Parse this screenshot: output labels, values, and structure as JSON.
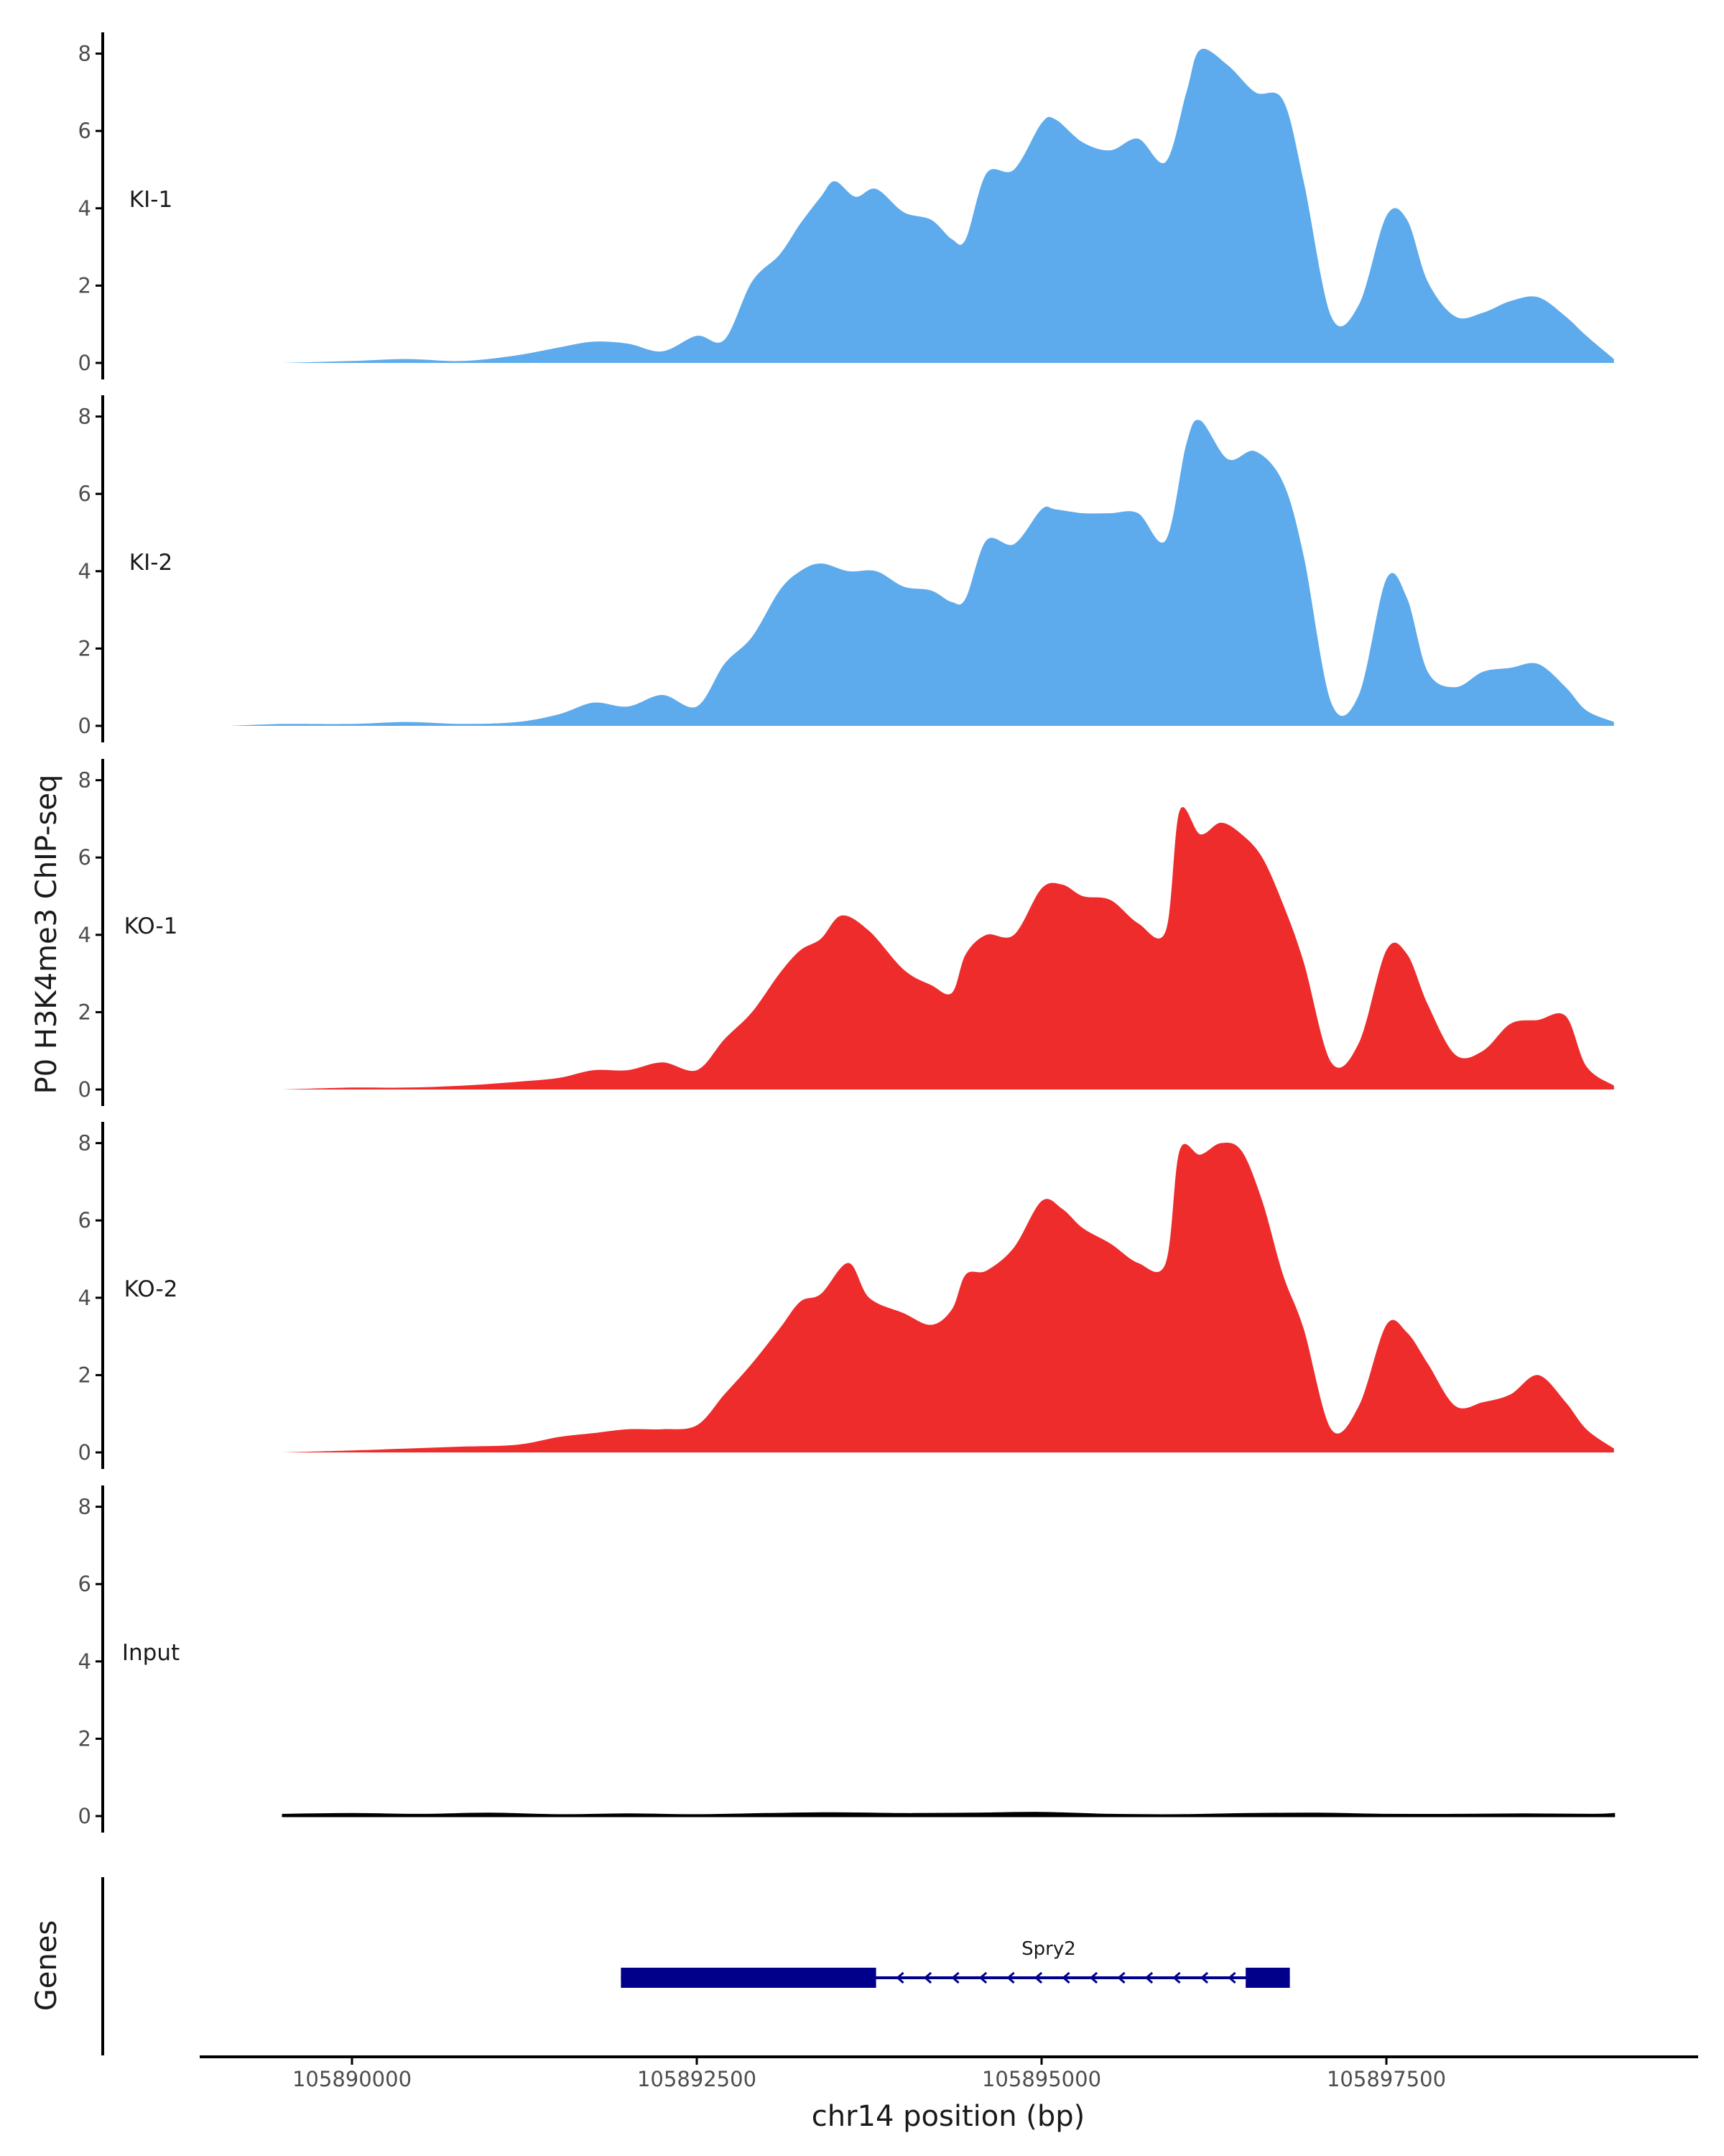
{
  "chart_data": {
    "type": "area",
    "ylabel": "P0 H3K4me3 ChIP-seq",
    "xlabel": "chr14 position (bp)",
    "x_ticks": [
      105890000,
      105892500,
      105895000,
      105897500
    ],
    "x_tick_labels": [
      "105890000",
      "105892500",
      "105895000",
      "105897500"
    ],
    "xlim": [
      105888900,
      105899700
    ],
    "y_ticks": [
      0,
      2,
      4,
      6,
      8
    ],
    "y_tick_labels": [
      "0",
      "2",
      "4",
      "6",
      "8"
    ],
    "ylim": [
      0,
      8.5
    ],
    "tracks": [
      {
        "name": "KI-1",
        "color": "#5DABEC",
        "x": [
          105889500,
          105890000,
          105890400,
          105890800,
          105891200,
          105891500,
          105891750,
          105892000,
          105892250,
          105892500,
          105892700,
          105892900,
          105893100,
          105893250,
          105893400,
          105893500,
          105893650,
          105893800,
          105894000,
          105894200,
          105894350,
          105894450,
          105894600,
          105894800,
          105895000,
          105895100,
          105895300,
          105895500,
          105895700,
          105895900,
          105896050,
          105896150,
          105896350,
          105896550,
          105896750,
          105896900,
          105897100,
          105897300,
          105897500,
          105897650,
          105897800,
          105898000,
          105898200,
          105898400,
          105898600,
          105898800,
          105898950,
          105899150
        ],
        "y": [
          0,
          0.05,
          0.1,
          0.05,
          0.2,
          0.4,
          0.55,
          0.5,
          0.3,
          0.7,
          0.6,
          2.1,
          2.8,
          3.6,
          4.3,
          4.7,
          4.3,
          4.5,
          3.9,
          3.7,
          3.2,
          3.2,
          4.9,
          5.0,
          6.2,
          6.3,
          5.7,
          5.5,
          5.8,
          5.2,
          7.0,
          8.1,
          7.7,
          7.0,
          6.8,
          4.7,
          1.2,
          1.5,
          3.8,
          3.7,
          2.1,
          1.2,
          1.3,
          1.6,
          1.7,
          1.2,
          0.7,
          0.1
        ]
      },
      {
        "name": "KI-2",
        "color": "#5DABEC",
        "x": [
          105889100,
          105889500,
          105890000,
          105890400,
          105890800,
          105891200,
          105891500,
          105891750,
          105892000,
          105892250,
          105892500,
          105892700,
          105892900,
          105893100,
          105893250,
          105893400,
          105893600,
          105893800,
          105894000,
          105894200,
          105894350,
          105894450,
          105894600,
          105894800,
          105895000,
          105895100,
          105895300,
          105895500,
          105895700,
          105895900,
          105896050,
          105896150,
          105896350,
          105896550,
          105896750,
          105896900,
          105897100,
          105897300,
          105897500,
          105897650,
          105897800,
          105898000,
          105898200,
          105898400,
          105898600,
          105898800,
          105898950,
          105899150
        ],
        "y": [
          0,
          0.05,
          0.05,
          0.1,
          0.05,
          0.1,
          0.3,
          0.6,
          0.5,
          0.8,
          0.5,
          1.6,
          2.3,
          3.5,
          4.0,
          4.2,
          4.0,
          4.0,
          3.6,
          3.5,
          3.2,
          3.3,
          4.8,
          4.7,
          5.6,
          5.6,
          5.5,
          5.5,
          5.5,
          4.8,
          7.3,
          7.9,
          6.9,
          7.1,
          6.3,
          4.4,
          0.6,
          0.8,
          3.8,
          3.3,
          1.4,
          1.0,
          1.4,
          1.5,
          1.6,
          1.0,
          0.4,
          0.1
        ]
      },
      {
        "name": "KO-1",
        "color": "#EE2C2C",
        "x": [
          105889500,
          105890000,
          105890400,
          105890800,
          105891200,
          105891500,
          105891750,
          105892000,
          105892250,
          105892500,
          105892700,
          105892900,
          105893100,
          105893250,
          105893400,
          105893550,
          105893750,
          105894000,
          105894200,
          105894350,
          105894450,
          105894600,
          105894800,
          105895000,
          105895150,
          105895300,
          105895500,
          105895700,
          105895900,
          105896000,
          105896150,
          105896300,
          105896450,
          105896600,
          105896750,
          105896900,
          105897100,
          105897300,
          105897500,
          105897650,
          105897800,
          105898000,
          105898200,
          105898400,
          105898600,
          105898800,
          105898950,
          105899150
        ],
        "y": [
          0,
          0.05,
          0.05,
          0.1,
          0.2,
          0.3,
          0.5,
          0.5,
          0.7,
          0.5,
          1.3,
          2.0,
          3.0,
          3.6,
          3.9,
          4.5,
          4.1,
          3.1,
          2.7,
          2.5,
          3.5,
          4.0,
          4.0,
          5.2,
          5.3,
          5.0,
          4.9,
          4.3,
          4.1,
          7.2,
          6.6,
          6.9,
          6.6,
          6.0,
          4.8,
          3.3,
          0.7,
          1.2,
          3.6,
          3.5,
          2.2,
          0.9,
          1.0,
          1.7,
          1.8,
          1.9,
          0.6,
          0.1
        ]
      },
      {
        "name": "KO-2",
        "color": "#EE2C2C",
        "x": [
          105889500,
          105890000,
          105890400,
          105890800,
          105891200,
          105891500,
          105891750,
          105892000,
          105892250,
          105892500,
          105892700,
          105892900,
          105893100,
          105893250,
          105893400,
          105893600,
          105893750,
          105894000,
          105894200,
          105894350,
          105894450,
          105894600,
          105894800,
          105895000,
          105895150,
          105895300,
          105895500,
          105895700,
          105895900,
          105896000,
          105896150,
          105896300,
          105896450,
          105896600,
          105896750,
          105896900,
          105897100,
          105897300,
          105897500,
          105897650,
          105897800,
          105898000,
          105898200,
          105898400,
          105898600,
          105898800,
          105898950,
          105899150
        ],
        "y": [
          0,
          0.05,
          0.1,
          0.15,
          0.2,
          0.4,
          0.5,
          0.6,
          0.6,
          0.7,
          1.5,
          2.3,
          3.2,
          3.9,
          4.1,
          4.9,
          4.0,
          3.6,
          3.3,
          3.7,
          4.6,
          4.7,
          5.3,
          6.5,
          6.3,
          5.8,
          5.4,
          4.9,
          4.9,
          7.8,
          7.7,
          8.0,
          7.8,
          6.5,
          4.6,
          3.2,
          0.6,
          1.2,
          3.3,
          3.1,
          2.3,
          1.2,
          1.3,
          1.5,
          2.0,
          1.3,
          0.6,
          0.1
        ]
      },
      {
        "name": "Input",
        "color": "#000000",
        "x": [
          105889500,
          105890000,
          105890500,
          105891000,
          105891500,
          105892000,
          105892500,
          105893000,
          105893500,
          105894000,
          105894500,
          105895000,
          105895500,
          105896000,
          105896500,
          105897000,
          105897500,
          105898000,
          105898500,
          105899000,
          105899150
        ],
        "y": [
          0.03,
          0.05,
          0.03,
          0.06,
          0.02,
          0.04,
          0.02,
          0.05,
          0.07,
          0.05,
          0.06,
          0.08,
          0.03,
          0.02,
          0.05,
          0.06,
          0.03,
          0.03,
          0.04,
          0.03,
          0.05
        ]
      }
    ],
    "genes_track": {
      "ylabel": "Genes",
      "genes": [
        {
          "name": "Spry2",
          "start": 105891950,
          "end": 105896800,
          "strand": "-",
          "thick_blocks": [
            [
              105891950,
              105893800
            ],
            [
              105896480,
              105896800
            ]
          ],
          "color": "#00008B"
        }
      ]
    }
  }
}
